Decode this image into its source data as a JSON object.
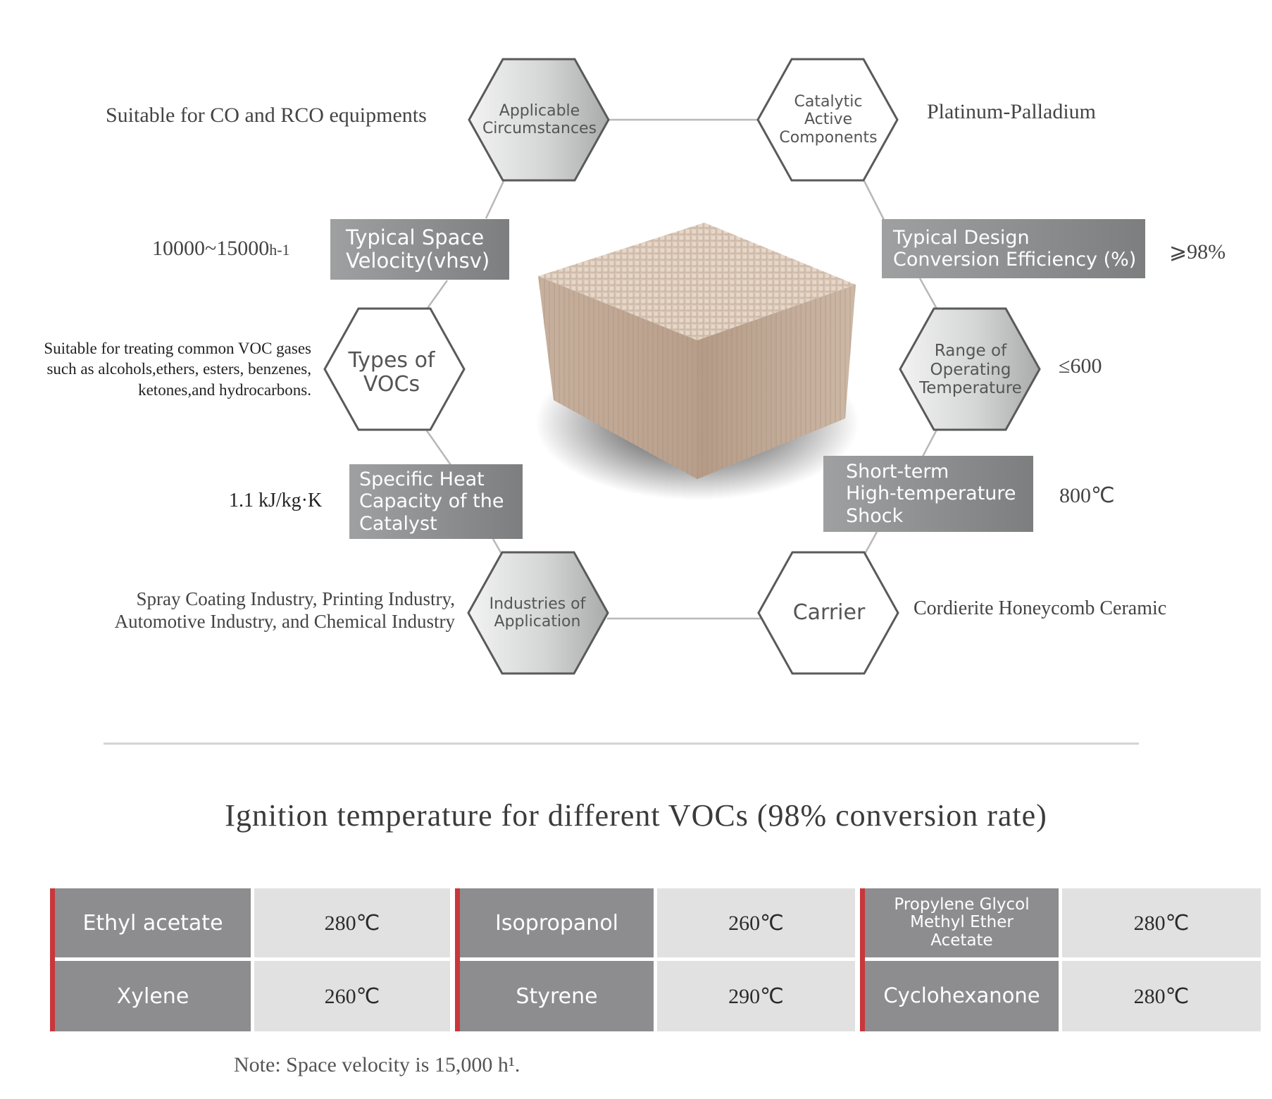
{
  "diagram": {
    "hexagons": {
      "applicable": "Applicable\nCircumstances",
      "catalytic": "Catalytic\nActive\nComponents",
      "types_vocs": "Types of\nVOCs",
      "range_temp": "Range of\nOperating\nTemperature",
      "industries": "Industries of\nApplication",
      "carrier": "Carrier"
    },
    "boxes": {
      "space_velocity": "Typical Space\nVelocity(vhsv)",
      "conversion": "Typical Design\nConversion Efficiency (%)",
      "heat_capacity": "Specific Heat\nCapacity of the\nCatalyst",
      "shock": "Short-term\nHigh-temperature\nShock"
    },
    "values": {
      "applicable": "Suitable for CO and RCO equipments",
      "catalytic": "Platinum-Palladium",
      "space_velocity": "10000~15000",
      "space_velocity_unit": "h-1",
      "conversion": "⩾98%",
      "types_vocs": "Suitable for treating common VOC gases\nsuch as alcohols,ethers, esters, benzenes,\nketones,and hydrocarbons.",
      "range_temp": "≤600",
      "heat_capacity": "1.1 kJ/kg·K",
      "shock": "800℃",
      "industries": "Spray Coating Industry, Printing Industry,\nAutomotive Industry, and Chemical Industry",
      "carrier": "Cordierite Honeycomb Ceramic"
    },
    "colors": {
      "line": "#b8b8b8",
      "hex_stroke": "#5a5a5a",
      "box_fill": "#8e9091",
      "ceramic": "#cfb9a8"
    }
  },
  "table": {
    "title": "Ignition temperature for different VOCs (98% conversion rate)",
    "rows": [
      [
        {
          "name": "Ethyl acetate",
          "temp": "280℃"
        },
        {
          "name": "Isopropanol",
          "temp": "260℃"
        },
        {
          "name": "Propylene Glycol\nMethyl Ether\nAcetate",
          "temp": "280℃"
        }
      ],
      [
        {
          "name": "Xylene",
          "temp": "260℃"
        },
        {
          "name": "Styrene",
          "temp": "290℃"
        },
        {
          "name": "Cyclohexanone",
          "temp": "280℃"
        }
      ]
    ],
    "note": "Note: Space velocity is 15,000 h¹.",
    "colors": {
      "name_fill": "#8d8c8e",
      "value_fill": "#e1e1e1",
      "accent": "#c7373b"
    }
  }
}
